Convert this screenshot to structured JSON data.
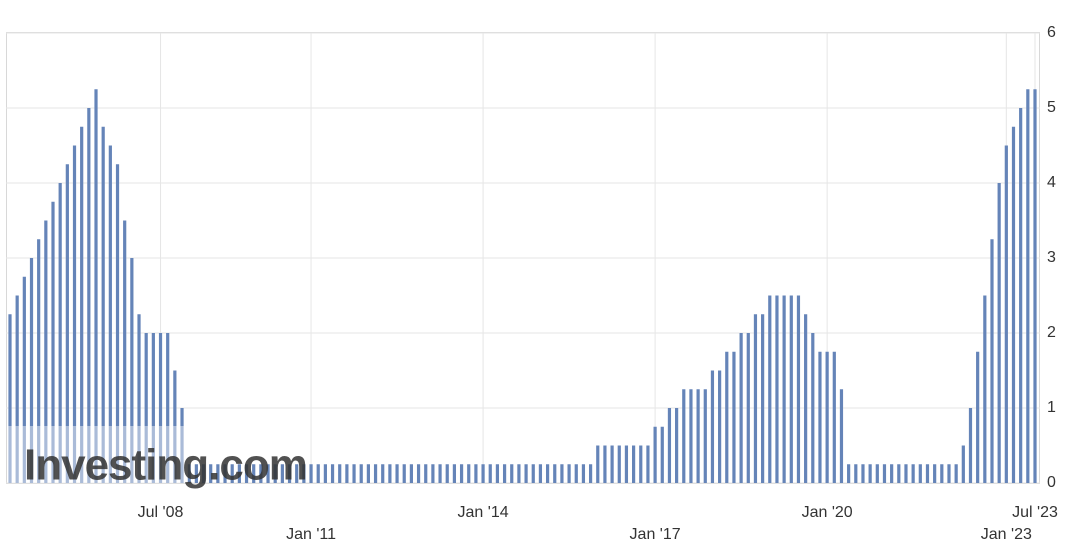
{
  "chart_data": {
    "type": "bar",
    "watermark": "Investing.com",
    "color": "#6584b8",
    "grid": true,
    "ylim": [
      0,
      6
    ],
    "yticks": [
      0,
      1,
      2,
      3,
      4,
      5,
      6
    ],
    "categories": [
      null,
      null,
      null,
      null,
      null,
      null,
      null,
      null,
      null,
      null,
      null,
      null,
      null,
      null,
      null,
      null,
      null,
      null,
      null,
      null,
      null,
      "Jul '08",
      null,
      null,
      null,
      null,
      null,
      null,
      null,
      null,
      null,
      null,
      null,
      null,
      null,
      null,
      null,
      null,
      null,
      null,
      null,
      null,
      "Jan '11",
      null,
      null,
      null,
      null,
      null,
      null,
      null,
      null,
      null,
      null,
      null,
      null,
      null,
      null,
      null,
      null,
      null,
      null,
      null,
      null,
      null,
      null,
      null,
      "Jan '14",
      null,
      null,
      null,
      null,
      null,
      null,
      null,
      null,
      null,
      null,
      null,
      null,
      null,
      null,
      null,
      null,
      null,
      null,
      null,
      null,
      null,
      null,
      null,
      "Jan '17",
      null,
      null,
      null,
      null,
      null,
      null,
      null,
      null,
      null,
      null,
      null,
      null,
      null,
      null,
      null,
      null,
      null,
      null,
      null,
      null,
      null,
      null,
      null,
      "Jan '20",
      null,
      null,
      null,
      null,
      null,
      null,
      null,
      null,
      null,
      null,
      null,
      null,
      null,
      null,
      null,
      null,
      null,
      null,
      null,
      null,
      null,
      null,
      null,
      null,
      "Jan '23",
      null,
      null,
      null,
      "Jul '23"
    ],
    "values": [
      2.25,
      2.5,
      2.75,
      3,
      3.25,
      3.5,
      3.75,
      4,
      4.25,
      4.5,
      4.75,
      5,
      5.25,
      4.75,
      4.5,
      4.25,
      3.5,
      3,
      2.25,
      2,
      2,
      2,
      2,
      1.5,
      1,
      0.25,
      0.25,
      0.25,
      0.25,
      0.25,
      0.25,
      0.25,
      0.25,
      0.25,
      0.25,
      0.25,
      0.25,
      0.25,
      0.25,
      0.25,
      0.25,
      0.25,
      0.25,
      0.25,
      0.25,
      0.25,
      0.25,
      0.25,
      0.25,
      0.25,
      0.25,
      0.25,
      0.25,
      0.25,
      0.25,
      0.25,
      0.25,
      0.25,
      0.25,
      0.25,
      0.25,
      0.25,
      0.25,
      0.25,
      0.25,
      0.25,
      0.25,
      0.25,
      0.25,
      0.25,
      0.25,
      0.25,
      0.25,
      0.25,
      0.25,
      0.25,
      0.25,
      0.25,
      0.25,
      0.25,
      0.25,
      0.25,
      0.5,
      0.5,
      0.5,
      0.5,
      0.5,
      0.5,
      0.5,
      0.5,
      0.75,
      0.75,
      1,
      1,
      1.25,
      1.25,
      1.25,
      1.25,
      1.5,
      1.5,
      1.75,
      1.75,
      2,
      2,
      2.25,
      2.25,
      2.5,
      2.5,
      2.5,
      2.5,
      2.5,
      2.25,
      2,
      1.75,
      1.75,
      1.75,
      1.25,
      0.25,
      0.25,
      0.25,
      0.25,
      0.25,
      0.25,
      0.25,
      0.25,
      0.25,
      0.25,
      0.25,
      0.25,
      0.25,
      0.25,
      0.25,
      0.25,
      0.5,
      1,
      1.75,
      2.5,
      3.25,
      4,
      4.5,
      4.75,
      5,
      5.25,
      5.25
    ]
  }
}
